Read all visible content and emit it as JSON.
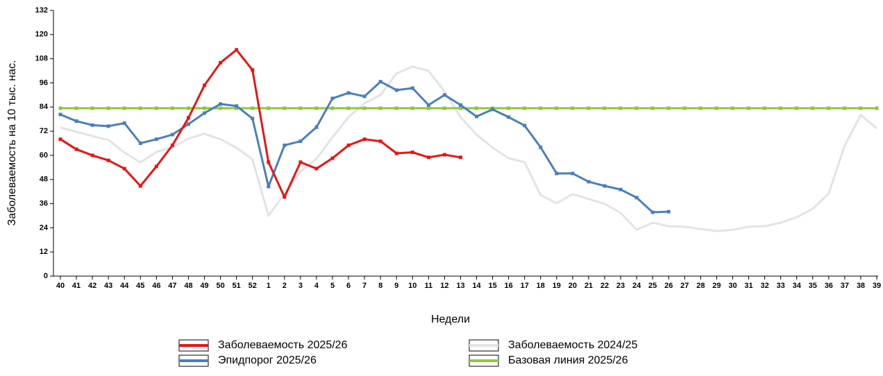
{
  "chart_data": {
    "type": "line",
    "y_label": "Заболеваемость на 10 тыс. нас.",
    "x_label": "Недели",
    "categories": [
      "40",
      "41",
      "42",
      "43",
      "44",
      "45",
      "46",
      "47",
      "48",
      "49",
      "50",
      "51",
      "52",
      "1",
      "2",
      "3",
      "4",
      "5",
      "6",
      "7",
      "8",
      "9",
      "10",
      "11",
      "12",
      "13",
      "14",
      "15",
      "16",
      "17",
      "18",
      "19",
      "20",
      "21",
      "22",
      "23",
      "24",
      "25",
      "26",
      "27",
      "28",
      "29",
      "30",
      "31",
      "32",
      "33",
      "34",
      "35",
      "36",
      "37",
      "38",
      "39"
    ],
    "ylim": [
      0,
      132
    ],
    "yticks": [
      0,
      12,
      24,
      36,
      48,
      60,
      72,
      84,
      96,
      108,
      120,
      132
    ],
    "series": [
      {
        "name": "Заболеваемость 2024/25",
        "color": "#e3e3e3",
        "markers": false,
        "values": [
          73.8,
          71.7,
          69.6,
          67.6,
          61.4,
          56.5,
          61.7,
          64,
          68.3,
          70.7,
          68,
          63.8,
          58,
          30,
          41,
          52,
          58.3,
          69,
          79,
          85.9,
          90,
          100.7,
          104.1,
          102,
          91.7,
          79,
          70.3,
          63.8,
          58.6,
          56.6,
          40.3,
          36.2,
          40.7,
          38.3,
          35.9,
          31.4,
          23,
          26.5,
          24.8,
          24.5,
          23.4,
          22.4,
          23,
          24.5,
          24.8,
          26.5,
          29.3,
          33.4,
          41,
          65,
          80,
          73.4
        ]
      },
      {
        "name": "Базовая линия 2025/26",
        "color": "#8cc63f",
        "markers": true,
        "values": [
          83.4,
          83.4,
          83.4,
          83.4,
          83.4,
          83.4,
          83.4,
          83.4,
          83.4,
          83.4,
          83.4,
          83.4,
          83.4,
          83.4,
          83.4,
          83.4,
          83.4,
          83.4,
          83.4,
          83.4,
          83.4,
          83.4,
          83.4,
          83.4,
          83.4,
          83.4,
          83.4,
          83.4,
          83.4,
          83.4,
          83.4,
          83.4,
          83.4,
          83.4,
          83.4,
          83.4,
          83.4,
          83.4,
          83.4,
          83.4,
          83.4,
          83.4,
          83.4,
          83.4,
          83.4,
          83.4,
          83.4,
          83.4,
          83.4,
          83.4,
          83.4,
          83.4
        ]
      },
      {
        "name": "Эпидпорог 2025/26",
        "color": "#4a7ebb",
        "markers": true,
        "values": [
          80.3,
          77,
          75,
          74.5,
          76,
          66,
          68,
          70.3,
          75.5,
          81,
          85.5,
          84.5,
          78.3,
          44.5,
          65,
          67,
          74,
          88.3,
          91,
          89.3,
          96.6,
          92.4,
          93.4,
          85,
          90,
          85,
          79.3,
          82.8,
          79,
          74.8,
          64,
          51,
          51,
          46.9,
          44.8,
          43,
          39,
          31.7,
          32,
          null,
          null,
          null,
          null,
          null,
          null,
          null,
          null,
          null,
          null,
          null,
          null,
          null
        ]
      },
      {
        "name": "Заболеваемость 2025/26",
        "color": "#ee1111",
        "markers": true,
        "values": [
          68,
          63,
          60,
          57.5,
          53.4,
          44.8,
          54.5,
          65,
          78.6,
          94.8,
          106,
          112.4,
          102.4,
          56.6,
          39.3,
          56.6,
          53.4,
          58.6,
          65,
          68,
          67,
          61,
          61.5,
          59,
          60.3,
          59,
          null,
          null,
          null,
          null,
          null,
          null,
          null,
          null,
          null,
          null,
          null,
          null,
          null,
          null,
          null,
          null,
          null,
          null,
          null,
          null,
          null,
          null,
          null,
          null,
          null,
          null
        ]
      }
    ],
    "legend_order": [
      3,
      0,
      2,
      1
    ]
  }
}
